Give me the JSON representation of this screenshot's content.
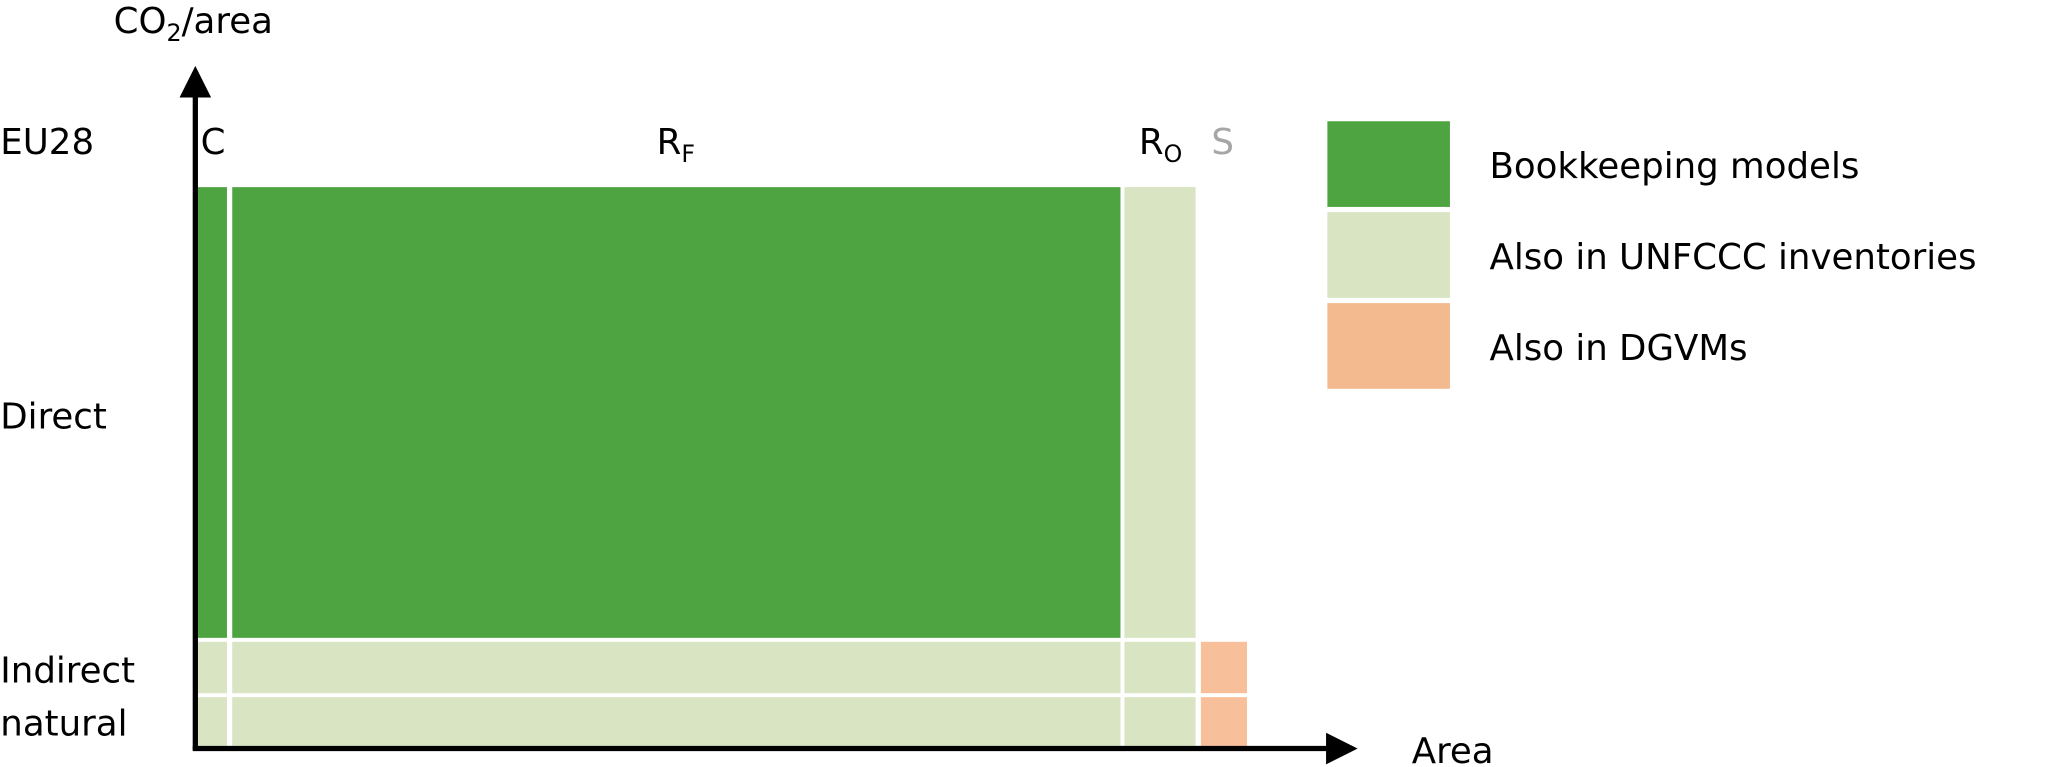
{
  "axes": {
    "y_label": {
      "base": "CO",
      "sub": "2",
      "rest": "/area"
    },
    "x_label": "Area"
  },
  "row_labels": {
    "region": "EU28",
    "direct": "Direct",
    "indirect": [
      "Indirect",
      "natural"
    ]
  },
  "columns": [
    {
      "base": "C"
    },
    {
      "base": "R",
      "sub": "F"
    },
    {
      "base": "R",
      "sub": "O"
    },
    {
      "base": "S"
    }
  ],
  "legend": [
    {
      "label": "Bookkeeping models",
      "color": "#4ea441"
    },
    {
      "label": "Also in UNFCCC inventories",
      "color": "#d8e4c2"
    },
    {
      "label": "Also in DGVMs",
      "color": "#f3b98f"
    }
  ]
}
